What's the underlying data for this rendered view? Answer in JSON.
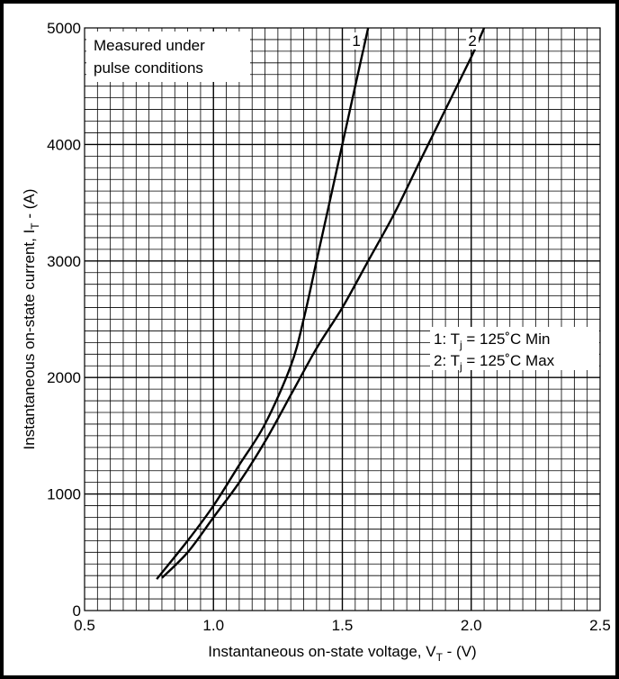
{
  "chart_data": {
    "type": "line",
    "xlabel_main": "Instantaneous on-state voltage, V",
    "xlabel_sub": "T",
    "xlabel_unit": " - (V)",
    "ylabel_main": "Instantaneous on-state current, I",
    "ylabel_sub": "T",
    "ylabel_unit": " - (A)",
    "xlim": [
      0.5,
      2.5
    ],
    "ylim": [
      0,
      5000
    ],
    "x_ticks": [
      "0.5",
      "1.0",
      "1.5",
      "2.0",
      "2.5"
    ],
    "y_ticks": [
      "0",
      "1000",
      "2000",
      "3000",
      "4000",
      "5000"
    ],
    "x_tick_values": [
      0.5,
      1.0,
      1.5,
      2.0,
      2.5
    ],
    "y_tick_values": [
      0,
      1000,
      2000,
      3000,
      4000,
      5000
    ],
    "grid": true,
    "annotation": {
      "line1": "Measured under",
      "line2": "pulse conditions"
    },
    "legend": {
      "placement": "right",
      "entries": [
        {
          "prefix": "1: T",
          "sub": "j",
          "suffix": " = 125˚C Min"
        },
        {
          "prefix": "2: T",
          "sub": "j",
          "suffix": " = 125˚C Max"
        }
      ]
    },
    "series": [
      {
        "label": "1",
        "points": [
          [
            0.78,
            270
          ],
          [
            0.9,
            600
          ],
          [
            1.0,
            900
          ],
          [
            1.1,
            1250
          ],
          [
            1.2,
            1600
          ],
          [
            1.3,
            2100
          ],
          [
            1.35,
            2500
          ],
          [
            1.4,
            3000
          ],
          [
            1.45,
            3500
          ],
          [
            1.5,
            4000
          ],
          [
            1.55,
            4500
          ],
          [
            1.6,
            5000
          ]
        ]
      },
      {
        "label": "2",
        "points": [
          [
            0.8,
            280
          ],
          [
            0.9,
            500
          ],
          [
            1.0,
            800
          ],
          [
            1.1,
            1100
          ],
          [
            1.2,
            1450
          ],
          [
            1.3,
            1850
          ],
          [
            1.4,
            2250
          ],
          [
            1.5,
            2600
          ],
          [
            1.6,
            3000
          ],
          [
            1.7,
            3400
          ],
          [
            1.8,
            3850
          ],
          [
            1.9,
            4300
          ],
          [
            2.0,
            4750
          ],
          [
            2.05,
            5000
          ]
        ]
      }
    ]
  }
}
